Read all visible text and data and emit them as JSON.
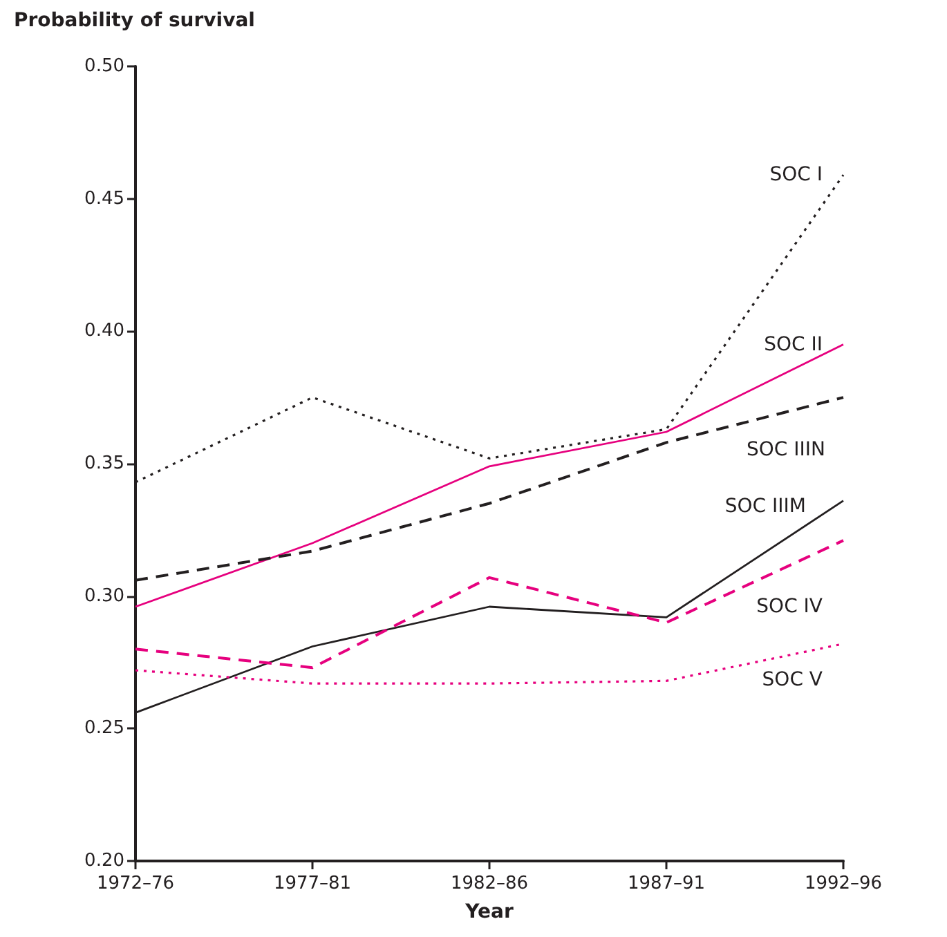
{
  "chart_data": {
    "type": "line",
    "xlabel": "Year",
    "ylabel": "Probability of survival",
    "categories": [
      "1972–76",
      "1977–81",
      "1982–86",
      "1987–91",
      "1992–96"
    ],
    "ylim": [
      0.2,
      0.5
    ],
    "yticks": [
      {
        "value": 0.2,
        "label": "0.20"
      },
      {
        "value": 0.25,
        "label": "0.25"
      },
      {
        "value": 0.3,
        "label": "0.30"
      },
      {
        "value": 0.35,
        "label": "0.35"
      },
      {
        "value": 0.4,
        "label": "0.40"
      },
      {
        "value": 0.45,
        "label": "0.45"
      },
      {
        "value": 0.5,
        "label": "0.50"
      }
    ],
    "grid": false,
    "legend": false,
    "marker": "none",
    "series": [
      {
        "name": "SOC I",
        "color": "#231f20",
        "line_style": "dotted",
        "values": [
          0.343,
          0.375,
          0.352,
          0.363,
          0.459
        ]
      },
      {
        "name": "SOC II",
        "color": "#e6007e",
        "line_style": "solid",
        "values": [
          0.296,
          0.32,
          0.349,
          0.362,
          0.395
        ]
      },
      {
        "name": "SOC IIIN",
        "color": "#231f20",
        "line_style": "dashed",
        "values": [
          0.306,
          0.317,
          0.335,
          0.358,
          0.375
        ]
      },
      {
        "name": "SOC IIIM",
        "color": "#231f20",
        "line_style": "solid",
        "values": [
          0.256,
          0.281,
          0.296,
          0.292,
          0.336
        ]
      },
      {
        "name": "SOC IV",
        "color": "#e6007e",
        "line_style": "dashed",
        "values": [
          0.28,
          0.273,
          0.307,
          0.29,
          0.321
        ]
      },
      {
        "name": "SOC V",
        "color": "#e6007e",
        "line_style": "dotted",
        "values": [
          0.272,
          0.267,
          0.267,
          0.268,
          0.282
        ]
      }
    ]
  }
}
